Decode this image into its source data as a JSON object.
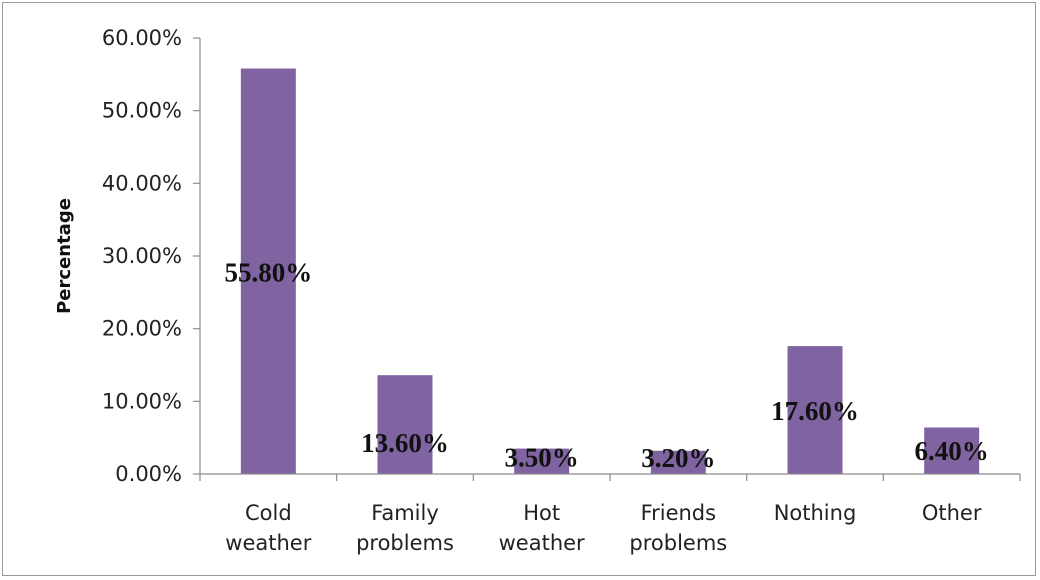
{
  "chart_data": {
    "type": "bar",
    "title": "",
    "xlabel": "",
    "ylabel": "Percentage",
    "ylim": [
      0,
      60
    ],
    "yticks": [
      "0.00%",
      "10.00%",
      "20.00%",
      "30.00%",
      "40.00%",
      "50.00%",
      "60.00%"
    ],
    "categories": [
      [
        "Cold",
        "weather"
      ],
      [
        "Family",
        "problems"
      ],
      [
        "Hot",
        "weather"
      ],
      [
        "Friends",
        "problems"
      ],
      [
        "Nothing"
      ],
      [
        "Other"
      ]
    ],
    "values": [
      55.8,
      13.6,
      3.5,
      3.2,
      17.6,
      6.4
    ],
    "data_labels": [
      "55.80%",
      "13.60%",
      "3.50%",
      "3.20%",
      "17.60%",
      "6.40%"
    ],
    "bar_color": "#8064A2",
    "grid": false,
    "legend": "none"
  }
}
